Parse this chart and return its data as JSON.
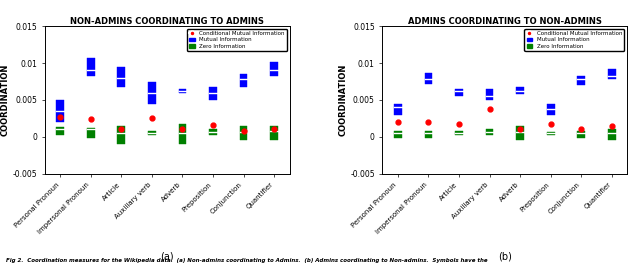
{
  "title_left": "NON-ADMINS COORDINATING TO ADMINS",
  "title_right": "ADMINS COORDINATING TO NON-ADMINS",
  "ylabel": "COORDINATION",
  "xlabel_a": "(a)",
  "xlabel_b": "(b)",
  "categories": [
    "Personal Pronoun",
    "Impersonal Pronoun",
    "Article",
    "Auxiliary verb",
    "Adverb",
    "Preposition",
    "Conjunction",
    "Quantifier"
  ],
  "ylim": [
    -0.005,
    0.015
  ],
  "yticks": [
    -0.005,
    0.0,
    0.005,
    0.01,
    0.015
  ],
  "left_blue_low": [
    0.002,
    0.0082,
    0.0068,
    0.0045,
    0.006,
    0.005,
    0.0068,
    0.0082
  ],
  "left_blue_high": [
    0.005,
    0.0107,
    0.0095,
    0.0075,
    0.0065,
    0.0068,
    0.0085,
    0.0102
  ],
  "left_blue_mid": [
    0.0035,
    0.009,
    0.008,
    0.006,
    0.0062,
    0.006,
    0.0078,
    0.009
  ],
  "left_red": [
    0.0027,
    0.0024,
    0.001,
    0.0026,
    0.001,
    0.0016,
    0.0008,
    0.001
  ],
  "left_green_low": [
    0.0002,
    -0.0002,
    -0.001,
    0.0002,
    -0.001,
    0.0002,
    -0.0005,
    -0.0005
  ],
  "left_green_high": [
    0.0013,
    0.0012,
    0.0015,
    0.0008,
    0.0018,
    0.001,
    0.0015,
    0.0015
  ],
  "left_green_mid": [
    0.001,
    0.001,
    0.0005,
    0.0005,
    0.0005,
    0.0007,
    0.0007,
    0.0008
  ],
  "right_blue_low": [
    0.003,
    0.0072,
    0.0055,
    0.005,
    0.0058,
    0.003,
    0.007,
    0.0078
  ],
  "right_blue_high": [
    0.0045,
    0.0087,
    0.0065,
    0.0065,
    0.0068,
    0.0045,
    0.0082,
    0.0092
  ],
  "right_blue_mid": [
    0.004,
    0.0078,
    0.0062,
    0.0056,
    0.0062,
    0.0038,
    0.0078,
    0.0082
  ],
  "right_red": [
    0.002,
    0.002,
    0.0018,
    0.0038,
    0.001,
    0.0018,
    0.001,
    0.0015
  ],
  "right_green_low": [
    -0.0002,
    -0.0002,
    0.0002,
    0.0002,
    -0.0005,
    0.0002,
    -0.0002,
    -0.0005
  ],
  "right_green_high": [
    0.0008,
    0.0008,
    0.0008,
    0.001,
    0.0015,
    0.0007,
    0.0008,
    0.001
  ],
  "right_green_mid": [
    0.0005,
    0.0005,
    0.0005,
    0.0006,
    0.0007,
    0.0005,
    0.0005,
    0.0005
  ],
  "blue_color": "#0000FF",
  "red_color": "#FF0000",
  "green_color": "#008000",
  "box_width": 0.25,
  "legend_labels": [
    "Conditional Mutual Information",
    "Mutual Information",
    "Zero Information"
  ],
  "caption": "Fig 2.  Coordination measures for the Wikipedia data.  (a) Non-admins coordinating to Admins.  (b) Admins coordinating to Non-admins.  Symbols have the"
}
